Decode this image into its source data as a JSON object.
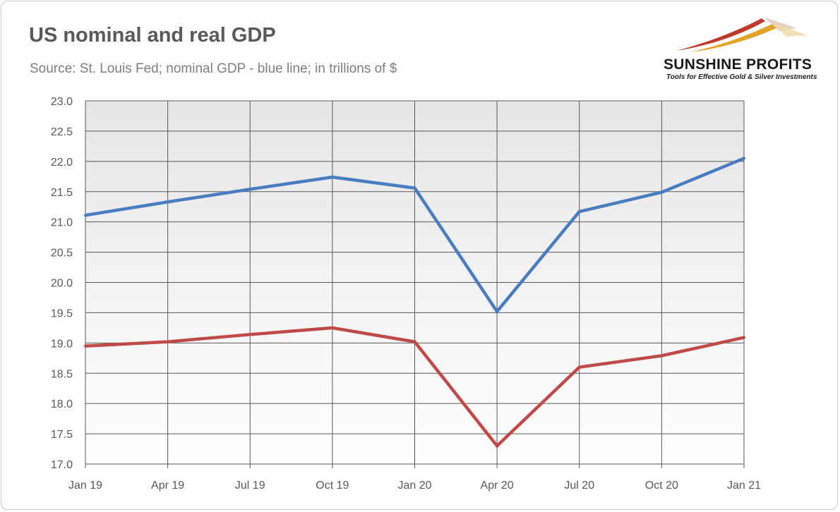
{
  "header": {
    "title": "US nominal and real GDP",
    "subtitle": "Source: St. Louis Fed; nominal GDP - blue line; in trillions of $"
  },
  "logo": {
    "name": "SUNSHINE PROFITS",
    "tagline": "Tools for Effective Gold & Silver Investments"
  },
  "chart_data": {
    "type": "line",
    "title": "US nominal and real GDP",
    "subtitle": "Source: St. Louis Fed; nominal GDP - blue line; in trillions of $",
    "xlabel": "",
    "ylabel": "",
    "categories": [
      "Jan 19",
      "Apr 19",
      "Jul 19",
      "Oct 19",
      "Jan 20",
      "Apr 20",
      "Jul 20",
      "Oct 20",
      "Jan 21"
    ],
    "ylim": [
      17.0,
      23.0
    ],
    "yticks": [
      "17.0",
      "17.5",
      "18.0",
      "18.5",
      "19.0",
      "19.5",
      "20.0",
      "20.5",
      "21.0",
      "21.5",
      "22.0",
      "22.5",
      "23.0"
    ],
    "grid": true,
    "series": [
      {
        "color": "#4a7dbf",
        "values": [
          21.11,
          21.33,
          21.54,
          21.74,
          21.56,
          19.52,
          21.17,
          21.49,
          22.05
        ]
      },
      {
        "color": "#bf4a47",
        "values": [
          18.95,
          19.02,
          19.14,
          19.25,
          19.02,
          17.3,
          18.6,
          18.79,
          19.09
        ]
      }
    ],
    "colors": {
      "plot_bg_top": "#e6e6e6",
      "plot_bg_bottom": "#ffffff",
      "grid": "#595959"
    }
  }
}
